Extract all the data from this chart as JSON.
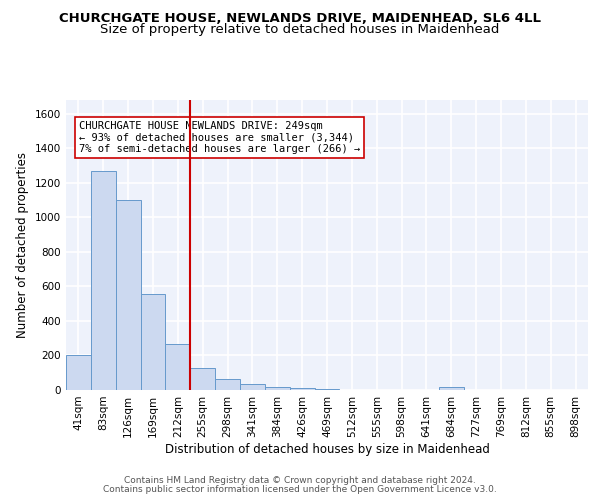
{
  "title_line1": "CHURCHGATE HOUSE, NEWLANDS DRIVE, MAIDENHEAD, SL6 4LL",
  "title_line2": "Size of property relative to detached houses in Maidenhead",
  "xlabel": "Distribution of detached houses by size in Maidenhead",
  "ylabel": "Number of detached properties",
  "categories": [
    "41sqm",
    "83sqm",
    "126sqm",
    "169sqm",
    "212sqm",
    "255sqm",
    "298sqm",
    "341sqm",
    "384sqm",
    "426sqm",
    "469sqm",
    "512sqm",
    "555sqm",
    "598sqm",
    "641sqm",
    "684sqm",
    "727sqm",
    "769sqm",
    "812sqm",
    "855sqm",
    "898sqm"
  ],
  "values": [
    200,
    1270,
    1100,
    555,
    265,
    130,
    65,
    35,
    20,
    12,
    8,
    0,
    0,
    0,
    0,
    20,
    0,
    0,
    0,
    0,
    0
  ],
  "bar_color": "#ccd9f0",
  "bar_edgecolor": "#6699cc",
  "vline_color": "#cc0000",
  "vline_index": 4.5,
  "annotation_text": "CHURCHGATE HOUSE NEWLANDS DRIVE: 249sqm\n← 93% of detached houses are smaller (3,344)\n7% of semi-detached houses are larger (266) →",
  "annotation_box_edgecolor": "#cc0000",
  "ylim": [
    0,
    1680
  ],
  "yticks": [
    0,
    200,
    400,
    600,
    800,
    1000,
    1200,
    1400,
    1600
  ],
  "bg_color": "#eef2fb",
  "grid_color": "#ffffff",
  "title_fontsize": 9.5,
  "subtitle_fontsize": 9.5,
  "axis_label_fontsize": 8.5,
  "tick_fontsize": 7.5,
  "annotation_fontsize": 7.5,
  "footer_fontsize": 6.5,
  "footer_line1": "Contains HM Land Registry data © Crown copyright and database right 2024.",
  "footer_line2": "Contains public sector information licensed under the Open Government Licence v3.0."
}
